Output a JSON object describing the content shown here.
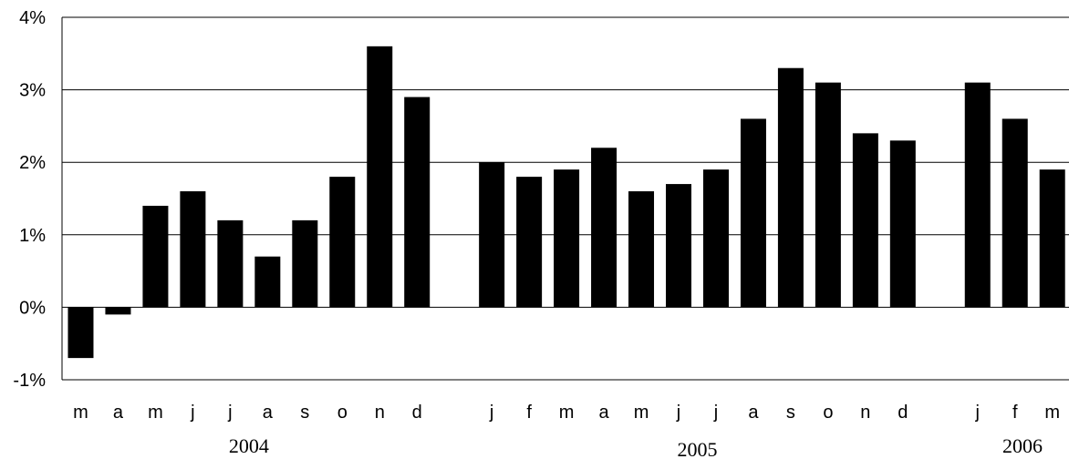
{
  "chart_data": {
    "type": "bar",
    "title": "",
    "xlabel": "",
    "ylabel": "",
    "ylim": [
      -1,
      4
    ],
    "yticks": [
      "-1%",
      "0%",
      "1%",
      "2%",
      "3%",
      "4%"
    ],
    "grid": true,
    "bar_color": "#000000",
    "groups": [
      {
        "year": "2004",
        "categories": [
          "m",
          "a",
          "m",
          "j",
          "j",
          "a",
          "s",
          "o",
          "n",
          "d"
        ],
        "values": [
          -0.7,
          -0.1,
          1.4,
          1.6,
          1.2,
          0.7,
          1.2,
          1.8,
          3.6,
          2.9
        ]
      },
      {
        "year": "2005",
        "categories": [
          "j",
          "f",
          "m",
          "a",
          "m",
          "j",
          "j",
          "a",
          "s",
          "o",
          "n",
          "d"
        ],
        "values": [
          2.0,
          1.8,
          1.9,
          2.2,
          1.6,
          1.7,
          1.9,
          2.6,
          3.3,
          3.1,
          2.4,
          2.3
        ]
      },
      {
        "year": "2006",
        "categories": [
          "j",
          "f",
          "m"
        ],
        "values": [
          3.1,
          2.6,
          1.9
        ]
      }
    ]
  }
}
